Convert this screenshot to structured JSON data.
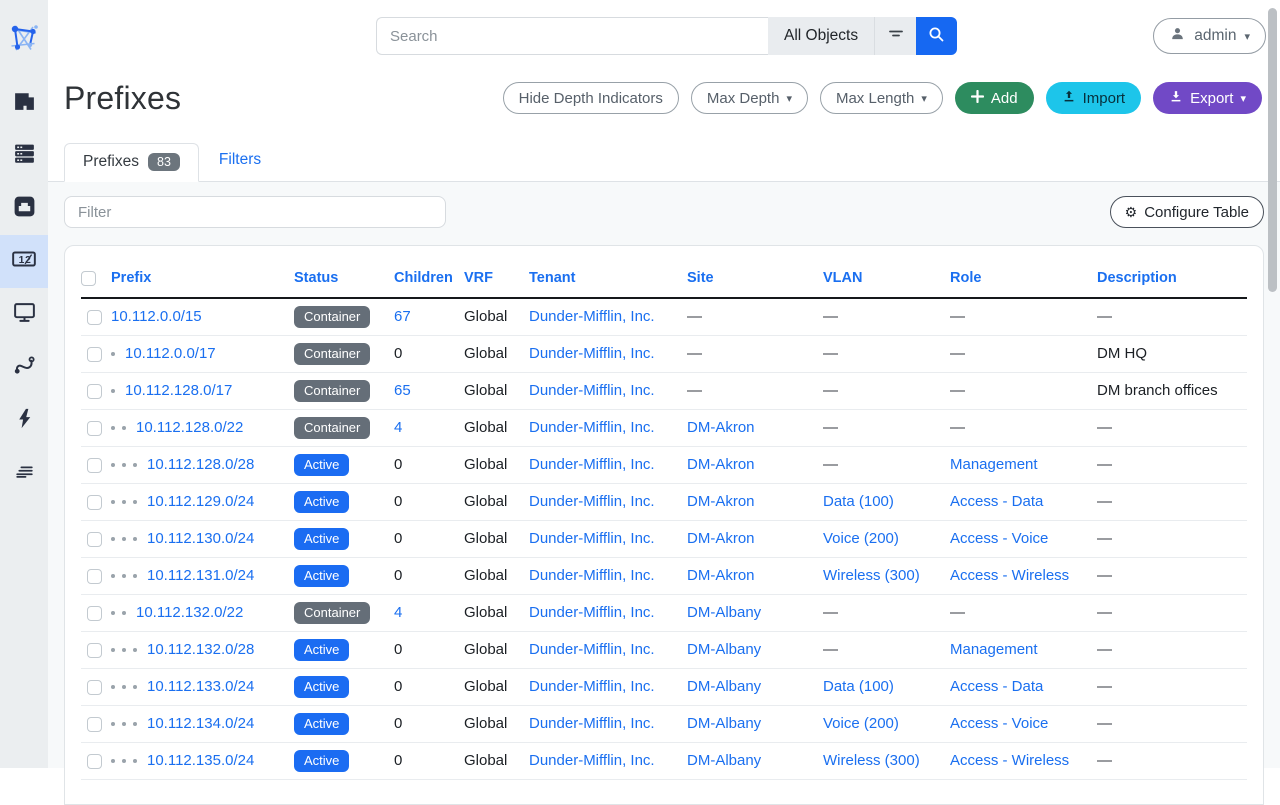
{
  "sidebar": {
    "logo": "netbox-logo",
    "items": [
      {
        "icon": "building",
        "active": false
      },
      {
        "icon": "server-stack",
        "active": false
      },
      {
        "icon": "ethernet-port",
        "active": false
      },
      {
        "icon": "counter",
        "active": true
      },
      {
        "icon": "monitor",
        "active": false
      },
      {
        "icon": "route-cable",
        "active": false
      },
      {
        "icon": "lightning-bolt",
        "active": false
      },
      {
        "icon": "stacked-lines",
        "active": false
      }
    ]
  },
  "topbar": {
    "search_placeholder": "Search",
    "object_type_label": "All Objects",
    "user_label": "admin"
  },
  "page": {
    "title": "Prefixes",
    "actions": {
      "hide_depth": "Hide Depth Indicators",
      "max_depth": "Max Depth",
      "max_length": "Max Length",
      "add": "Add",
      "import": "Import",
      "export": "Export"
    },
    "tabs": [
      {
        "label": "Prefixes",
        "count": "83",
        "active": true
      },
      {
        "label": "Filters",
        "active": false
      }
    ],
    "filter_placeholder": "Filter",
    "configure_table_label": "Configure Table"
  },
  "table": {
    "columns": [
      "Prefix",
      "Status",
      "Children",
      "VRF",
      "Tenant",
      "Site",
      "VLAN",
      "Role",
      "Description"
    ],
    "rows": [
      {
        "depth": 0,
        "prefix": "10.112.0.0/15",
        "status": "Container",
        "status_color": "gray",
        "children": "67",
        "children_link": true,
        "vrf": "Global",
        "tenant": "Dunder-Mifflin, Inc.",
        "site": "—",
        "vlan": "—",
        "role": "—",
        "description": "—"
      },
      {
        "depth": 1,
        "prefix": "10.112.0.0/17",
        "status": "Container",
        "status_color": "gray",
        "children": "0",
        "children_link": false,
        "vrf": "Global",
        "tenant": "Dunder-Mifflin, Inc.",
        "site": "—",
        "vlan": "—",
        "role": "—",
        "description": "DM HQ"
      },
      {
        "depth": 1,
        "prefix": "10.112.128.0/17",
        "status": "Container",
        "status_color": "gray",
        "children": "65",
        "children_link": true,
        "vrf": "Global",
        "tenant": "Dunder-Mifflin, Inc.",
        "site": "—",
        "vlan": "—",
        "role": "—",
        "description": "DM branch offices"
      },
      {
        "depth": 2,
        "prefix": "10.112.128.0/22",
        "status": "Container",
        "status_color": "gray",
        "children": "4",
        "children_link": true,
        "vrf": "Global",
        "tenant": "Dunder-Mifflin, Inc.",
        "site": "DM-Akron",
        "vlan": "—",
        "role": "—",
        "description": "—"
      },
      {
        "depth": 3,
        "prefix": "10.112.128.0/28",
        "status": "Active",
        "status_color": "blue",
        "children": "0",
        "children_link": false,
        "vrf": "Global",
        "tenant": "Dunder-Mifflin, Inc.",
        "site": "DM-Akron",
        "vlan": "—",
        "role": "Management",
        "description": "—"
      },
      {
        "depth": 3,
        "prefix": "10.112.129.0/24",
        "status": "Active",
        "status_color": "blue",
        "children": "0",
        "children_link": false,
        "vrf": "Global",
        "tenant": "Dunder-Mifflin, Inc.",
        "site": "DM-Akron",
        "vlan": "Data (100)",
        "role": "Access - Data",
        "description": "—"
      },
      {
        "depth": 3,
        "prefix": "10.112.130.0/24",
        "status": "Active",
        "status_color": "blue",
        "children": "0",
        "children_link": false,
        "vrf": "Global",
        "tenant": "Dunder-Mifflin, Inc.",
        "site": "DM-Akron",
        "vlan": "Voice (200)",
        "role": "Access - Voice",
        "description": "—"
      },
      {
        "depth": 3,
        "prefix": "10.112.131.0/24",
        "status": "Active",
        "status_color": "blue",
        "children": "0",
        "children_link": false,
        "vrf": "Global",
        "tenant": "Dunder-Mifflin, Inc.",
        "site": "DM-Akron",
        "vlan": "Wireless (300)",
        "role": "Access - Wireless",
        "description": "—"
      },
      {
        "depth": 2,
        "prefix": "10.112.132.0/22",
        "status": "Container",
        "status_color": "gray",
        "children": "4",
        "children_link": true,
        "vrf": "Global",
        "tenant": "Dunder-Mifflin, Inc.",
        "site": "DM-Albany",
        "vlan": "—",
        "role": "—",
        "description": "—"
      },
      {
        "depth": 3,
        "prefix": "10.112.132.0/28",
        "status": "Active",
        "status_color": "blue",
        "children": "0",
        "children_link": false,
        "vrf": "Global",
        "tenant": "Dunder-Mifflin, Inc.",
        "site": "DM-Albany",
        "vlan": "—",
        "role": "Management",
        "description": "—"
      },
      {
        "depth": 3,
        "prefix": "10.112.133.0/24",
        "status": "Active",
        "status_color": "blue",
        "children": "0",
        "children_link": false,
        "vrf": "Global",
        "tenant": "Dunder-Mifflin, Inc.",
        "site": "DM-Albany",
        "vlan": "Data (100)",
        "role": "Access - Data",
        "description": "—"
      },
      {
        "depth": 3,
        "prefix": "10.112.134.0/24",
        "status": "Active",
        "status_color": "blue",
        "children": "0",
        "children_link": false,
        "vrf": "Global",
        "tenant": "Dunder-Mifflin, Inc.",
        "site": "DM-Albany",
        "vlan": "Voice (200)",
        "role": "Access - Voice",
        "description": "—"
      },
      {
        "depth": 3,
        "prefix": "10.112.135.0/24",
        "status": "Active",
        "status_color": "blue",
        "children": "0",
        "children_link": false,
        "vrf": "Global",
        "tenant": "Dunder-Mifflin, Inc.",
        "site": "DM-Albany",
        "vlan": "Wireless (300)",
        "role": "Access - Wireless",
        "description": "—"
      }
    ]
  },
  "colors": {
    "link_blue": "#1a6ff0",
    "badge_active_blue": "#1b6cf2",
    "badge_container_gray": "#656e78",
    "button_add_green": "#2d8c5f",
    "button_import_cyan": "#1dc5ea",
    "button_export_purple": "#7149c6",
    "search_button_blue": "#1668f2",
    "sidebar_active_bg": "#d1e1fa"
  }
}
